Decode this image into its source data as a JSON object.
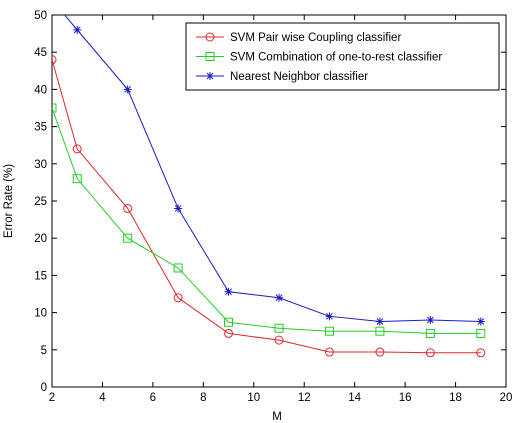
{
  "chart_data": {
    "type": "line",
    "title": "",
    "xlabel": "M",
    "ylabel": "Error Rate (%)",
    "xlim": [
      2,
      20
    ],
    "ylim": [
      0,
      50
    ],
    "xticks": [
      2,
      4,
      6,
      8,
      10,
      12,
      14,
      16,
      18,
      20
    ],
    "yticks": [
      0,
      5,
      10,
      15,
      20,
      25,
      30,
      35,
      40,
      45,
      50
    ],
    "grid": false,
    "legend_position": "top-right",
    "x": [
      2,
      3,
      5,
      7,
      9,
      11,
      13,
      15,
      17,
      19
    ],
    "series": [
      {
        "name": "SVM Pair wise Coupling classifier",
        "color": "#e0282c",
        "marker": "circle",
        "x": [
          2,
          3,
          5,
          7,
          9,
          11,
          13,
          15,
          17,
          19
        ],
        "values": [
          44,
          32,
          24,
          12,
          7.2,
          6.3,
          4.7,
          4.7,
          4.6,
          4.6
        ]
      },
      {
        "name": "SVM Combination of one-to-rest classifier",
        "color": "#22d022",
        "marker": "square",
        "x": [
          2,
          3,
          5,
          7,
          9,
          11,
          13,
          15,
          17,
          19
        ],
        "values": [
          37.5,
          28,
          20,
          16,
          8.7,
          7.9,
          7.5,
          7.5,
          7.2,
          7.2
        ]
      },
      {
        "name": "Nearest Neighbor classifier",
        "color": "#1a1ac8",
        "marker": "star",
        "x": [
          3,
          5,
          7,
          9,
          11,
          13,
          15,
          17,
          19
        ],
        "values": [
          48,
          40,
          24,
          12.8,
          12,
          9.5,
          8.8,
          9,
          8.8
        ],
        "extends_above_top_at_left": true
      }
    ]
  }
}
